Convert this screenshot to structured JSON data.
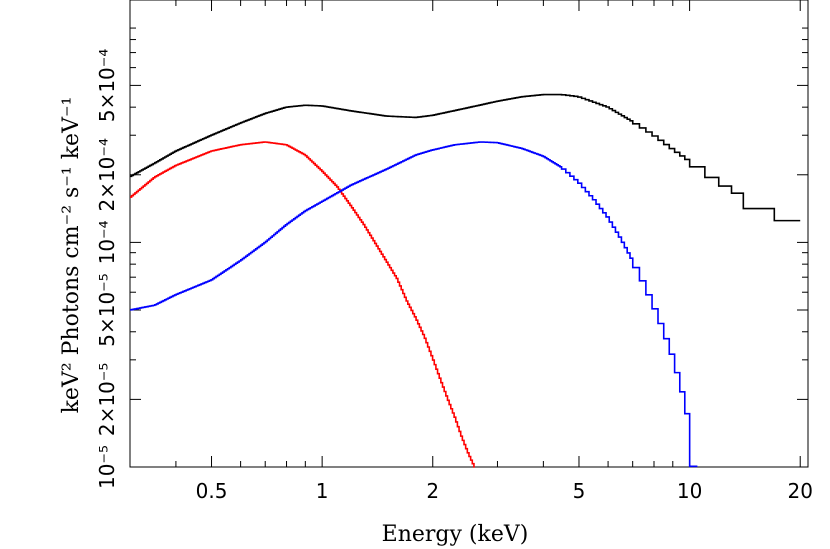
{
  "chart_data": {
    "type": "line",
    "title": "",
    "xlabel": "Energy (keV)",
    "ylabel": "keV² Photons cm⁻² s⁻¹ keV⁻¹",
    "x_scale": "log",
    "y_scale": "log",
    "xlim": [
      0.3,
      21
    ],
    "ylim": [
      1e-05,
      0.0012
    ],
    "x_ticks": [
      {
        "value": 0.5,
        "label": "0.5"
      },
      {
        "value": 1,
        "label": "1"
      },
      {
        "value": 2,
        "label": "2"
      },
      {
        "value": 5,
        "label": "5"
      },
      {
        "value": 10,
        "label": "10"
      },
      {
        "value": 20,
        "label": "20"
      }
    ],
    "y_ticks": [
      {
        "value": 1e-05,
        "label": "10⁻⁵"
      },
      {
        "value": 2e-05,
        "label": "2×10⁻⁵"
      },
      {
        "value": 5e-05,
        "label": "5×10⁻⁵"
      },
      {
        "value": 0.0001,
        "label": "10⁻⁴"
      },
      {
        "value": 0.0002,
        "label": "2×10⁻⁴"
      },
      {
        "value": 0.0005,
        "label": "5×10⁻⁴"
      }
    ],
    "grid": false,
    "legend": "none",
    "series": [
      {
        "color": "#000000",
        "x": [
          0.3,
          0.35,
          0.4,
          0.5,
          0.6,
          0.7,
          0.8,
          0.9,
          1.0,
          1.2,
          1.5,
          1.8,
          2.0,
          2.5,
          3.0,
          3.5,
          4.0,
          4.5,
          5.0,
          6.0,
          7.0,
          8.0,
          9.0,
          10.0,
          11.0,
          12.0,
          14.0,
          17.0,
          20.0
        ],
        "y": [
          0.000196,
          0.000225,
          0.000255,
          0.0003,
          0.00034,
          0.000375,
          0.0004,
          0.000408,
          0.000405,
          0.000385,
          0.000365,
          0.00036,
          0.000368,
          0.000398,
          0.000425,
          0.000445,
          0.000455,
          0.000455,
          0.000445,
          0.0004,
          0.000345,
          0.0003,
          0.00026,
          0.00023,
          0.000205,
          0.000185,
          0.00016,
          0.000125,
          0.000125
        ]
      },
      {
        "color": "#ff0000",
        "x": [
          0.3,
          0.35,
          0.4,
          0.5,
          0.6,
          0.7,
          0.8,
          0.9,
          1.0,
          1.1,
          1.2,
          1.3,
          1.4,
          1.5,
          1.6,
          1.7,
          1.8,
          1.9,
          2.0,
          2.1,
          2.2,
          2.3,
          2.4,
          2.5,
          2.6
        ],
        "y": [
          0.000158,
          0.000195,
          0.00022,
          0.000255,
          0.000272,
          0.00028,
          0.000272,
          0.000245,
          0.000208,
          0.000177,
          0.000145,
          0.00012,
          9.85e-05,
          8.2e-05,
          6.9e-05,
          5.5e-05,
          4.6e-05,
          3.8e-05,
          3.05e-05,
          2.45e-05,
          2e-05,
          1.66e-05,
          1.36e-05,
          1.15e-05,
          1e-05
        ]
      },
      {
        "color": "#0000ff",
        "x": [
          0.3,
          0.35,
          0.4,
          0.5,
          0.6,
          0.7,
          0.8,
          0.9,
          1.0,
          1.2,
          1.5,
          1.8,
          2.0,
          2.3,
          2.7,
          3.0,
          3.5,
          4.0,
          4.5,
          5.0,
          5.5,
          6.0,
          6.5,
          7.0,
          7.5,
          8.0,
          8.5,
          9.0,
          9.5,
          10.0,
          10.5
        ],
        "y": [
          5e-05,
          5.25e-05,
          5.85e-05,
          6.8e-05,
          8.3e-05,
          0.0001,
          0.00012,
          0.000138,
          0.000152,
          0.00018,
          0.000212,
          0.000245,
          0.000258,
          0.000272,
          0.00028,
          0.000278,
          0.000262,
          0.000242,
          0.000215,
          0.000185,
          0.000155,
          0.000129,
          0.000104,
          8.3e-05,
          6.6e-05,
          5.2e-05,
          4.05e-05,
          3.1e-05,
          2.25e-05,
          1.55e-05,
          1e-05
        ]
      }
    ]
  }
}
